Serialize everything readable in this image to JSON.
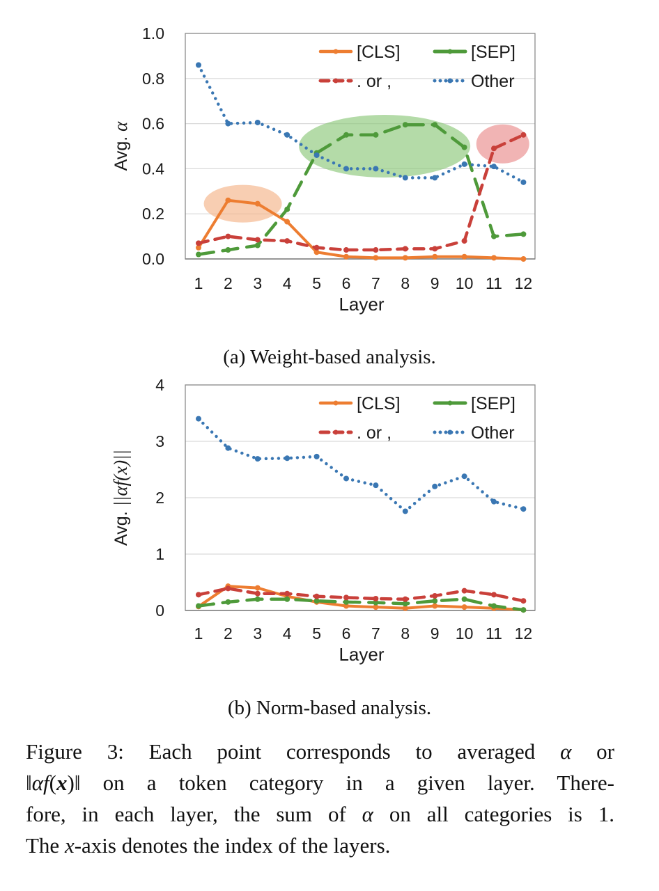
{
  "chart_data": [
    {
      "type": "line",
      "caption": "(a) Weight-based analysis.",
      "xlabel": "Layer",
      "ylabel": "Avg. α",
      "x": [
        1,
        2,
        3,
        4,
        5,
        6,
        7,
        8,
        9,
        10,
        11,
        12
      ],
      "x_tick_labels": [
        "1",
        "2",
        "3",
        "4",
        "5",
        "6",
        "7",
        "8",
        "9",
        "10",
        "11",
        "12"
      ],
      "ylim": [
        0,
        1.0
      ],
      "y_ticks": [
        0.0,
        0.2,
        0.4,
        0.6,
        0.8,
        1.0
      ],
      "y_tick_labels": [
        "0.0",
        "0.2",
        "0.4",
        "0.6",
        "0.8",
        "1.0"
      ],
      "grid": true,
      "legend_position": "top-right",
      "series": [
        {
          "name": "[CLS]",
          "color": "#ED7D31",
          "style": "solid",
          "values": [
            0.05,
            0.26,
            0.245,
            0.165,
            0.03,
            0.01,
            0.005,
            0.005,
            0.01,
            0.01,
            0.005,
            0.0
          ]
        },
        {
          "name": "[SEP]",
          "color": "#4E9A3A",
          "style": "dashed-long",
          "values": [
            0.02,
            0.04,
            0.06,
            0.22,
            0.47,
            0.55,
            0.55,
            0.595,
            0.595,
            0.495,
            0.1,
            0.11
          ]
        },
        {
          "name": ". or ,",
          "color": "#C9403A",
          "style": "dashed",
          "values": [
            0.07,
            0.1,
            0.085,
            0.08,
            0.05,
            0.04,
            0.04,
            0.045,
            0.045,
            0.08,
            0.49,
            0.55
          ]
        },
        {
          "name": "Other",
          "color": "#3A77B3",
          "style": "dotted",
          "values": [
            0.86,
            0.6,
            0.605,
            0.55,
            0.46,
            0.4,
            0.4,
            0.36,
            0.36,
            0.42,
            0.41,
            0.34
          ]
        }
      ],
      "highlights": [
        {
          "color": "#F5B488",
          "x": 2.5,
          "y": 0.245
        },
        {
          "color": "#8CC77A",
          "x": 7.3,
          "y": 0.5
        },
        {
          "color": "#E98C8C",
          "x": 11.3,
          "y": 0.51
        }
      ]
    },
    {
      "type": "line",
      "caption": "(b) Norm-based analysis.",
      "xlabel": "Layer",
      "ylabel": "Avg. ||αf(x)||",
      "x": [
        1,
        2,
        3,
        4,
        5,
        6,
        7,
        8,
        9,
        10,
        11,
        12
      ],
      "x_tick_labels": [
        "1",
        "2",
        "3",
        "4",
        "5",
        "6",
        "7",
        "8",
        "9",
        "10",
        "11",
        "12"
      ],
      "ylim": [
        0,
        4
      ],
      "y_ticks": [
        0,
        1,
        2,
        3,
        4
      ],
      "y_tick_labels": [
        "0",
        "1",
        "2",
        "3",
        "4"
      ],
      "grid": true,
      "legend_position": "top-right",
      "series": [
        {
          "name": "[CLS]",
          "color": "#ED7D31",
          "style": "solid",
          "values": [
            0.07,
            0.43,
            0.4,
            0.25,
            0.15,
            0.08,
            0.06,
            0.04,
            0.08,
            0.06,
            0.04,
            0.01
          ]
        },
        {
          "name": "[SEP]",
          "color": "#4E9A3A",
          "style": "dashed-long",
          "values": [
            0.08,
            0.15,
            0.2,
            0.2,
            0.17,
            0.15,
            0.14,
            0.12,
            0.17,
            0.2,
            0.08,
            0.01
          ]
        },
        {
          "name": ". or ,",
          "color": "#C9403A",
          "style": "dashed",
          "values": [
            0.28,
            0.39,
            0.3,
            0.3,
            0.25,
            0.23,
            0.21,
            0.2,
            0.26,
            0.35,
            0.28,
            0.17
          ]
        },
        {
          "name": "Other",
          "color": "#3A77B3",
          "style": "dotted",
          "values": [
            3.4,
            2.88,
            2.69,
            2.7,
            2.73,
            2.34,
            2.22,
            1.76,
            2.2,
            2.38,
            1.93,
            1.8
          ]
        }
      ]
    }
  ],
  "figure_caption": {
    "line1_a": "Figure 3:  Each point corresponds to averaged ",
    "line1_b": "α",
    "line1_c": " or",
    "line2_a": "‖",
    "line2_b": "αf",
    "line2_c": "(",
    "line2_d": "x",
    "line2_e": ")‖ on a token category in a given layer.  There-",
    "line3_a": "fore, in each layer, the sum of ",
    "line3_b": "α",
    "line3_c": " on all categories is 1.",
    "line4_a": "The ",
    "line4_b": "x",
    "line4_c": "-axis denotes the index of the layers."
  }
}
